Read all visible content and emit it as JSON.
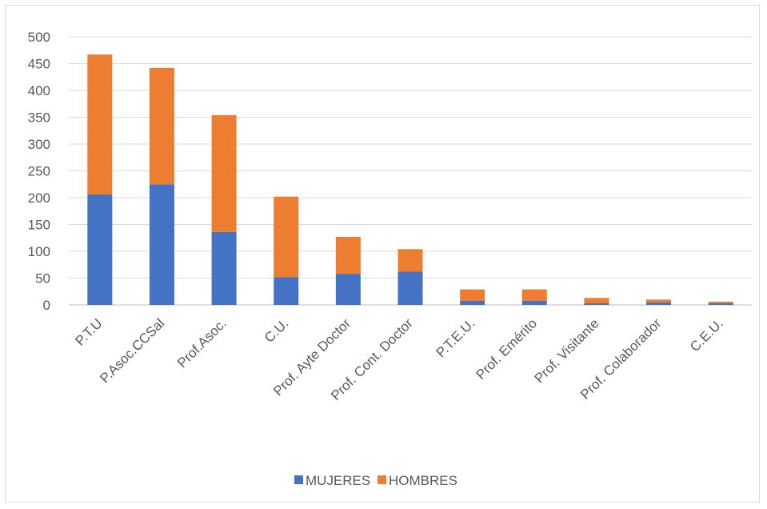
{
  "chart_data": {
    "type": "bar",
    "stacked": true,
    "title": "",
    "xlabel": "",
    "ylabel": "",
    "ylim": [
      0,
      500
    ],
    "yticks": [
      0,
      50,
      100,
      150,
      200,
      250,
      300,
      350,
      400,
      450,
      500
    ],
    "grid": true,
    "legend_position": "bottom",
    "categories": [
      "P.T.U",
      "P.Asoc.CCSal",
      "Prof.Asoc.",
      "C.U.",
      "Prof. Ayte Doctor",
      "Prof. Cont. Doctor",
      "P.T.E.U.",
      "Prof. Emérito",
      "Prof. Visitante",
      "Prof. Colaborador",
      "C.E.U."
    ],
    "series": [
      {
        "name": "MUJERES",
        "color": "#4472c4",
        "values": [
          206,
          225,
          136,
          52,
          58,
          62,
          8,
          8,
          3,
          5,
          3
        ]
      },
      {
        "name": "HOMBRES",
        "color": "#ed7d31",
        "values": [
          261,
          217,
          218,
          150,
          69,
          42,
          21,
          21,
          10,
          5,
          3
        ]
      }
    ]
  }
}
